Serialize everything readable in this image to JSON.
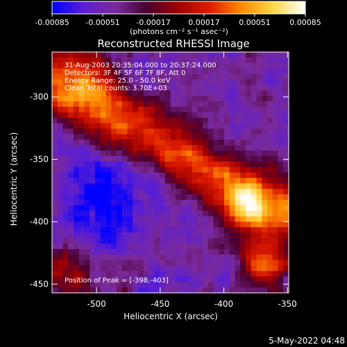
{
  "colorbar": {
    "tick_labels": [
      "-0.00085",
      "-0.00051",
      "-0.00017",
      "0.00017",
      "0.00051",
      "0.00085"
    ],
    "tick_values": [
      -0.00085,
      -0.00051,
      -0.00017,
      0.00017,
      0.00051,
      0.00085
    ],
    "min": -0.00085,
    "max": 0.00085,
    "units_label": "(photons cm⁻² s⁻¹ asec⁻²)",
    "colors": [
      "#0000ff",
      "#5a1ed2",
      "#7a2a9a",
      "#4a0030",
      "#a00000",
      "#e01e00",
      "#ff8c00",
      "#ffd84a",
      "#ffffff"
    ]
  },
  "chart_data": {
    "type": "heatmap",
    "title": "Reconstructed RHESSI Image",
    "xlabel": "Heliocentric X (arcsec)",
    "ylabel": "Heliocentric Y (arcsec)",
    "xlim": [
      -535,
      -349
    ],
    "ylim": [
      -457,
      -264
    ],
    "x_ticks": [
      -500,
      -450,
      -400,
      -350
    ],
    "x_tick_labels": [
      "-500",
      "-450",
      "-400",
      "-350"
    ],
    "y_ticks": [
      -300,
      -350,
      -400,
      -450
    ],
    "y_tick_labels": [
      "-300",
      "-350",
      "-400",
      "-450"
    ],
    "annotations": [
      "31-Aug-2003 20:35:04.000 to 20:37:24.000",
      "Detectors: 3F 4F 5F 6F 7F 8F, Att 0",
      "Energy Range: 25.0 - 50.0 keV",
      "Clean     Total counts: 3.70E+03"
    ],
    "peak_label": "Position of Peak = [-398,-403]",
    "peak": [
      -398,
      -403
    ],
    "grid": false,
    "colormap": "rhessi-diverging"
  },
  "footer": {
    "timestamp": "5-May-2022 04:48"
  }
}
